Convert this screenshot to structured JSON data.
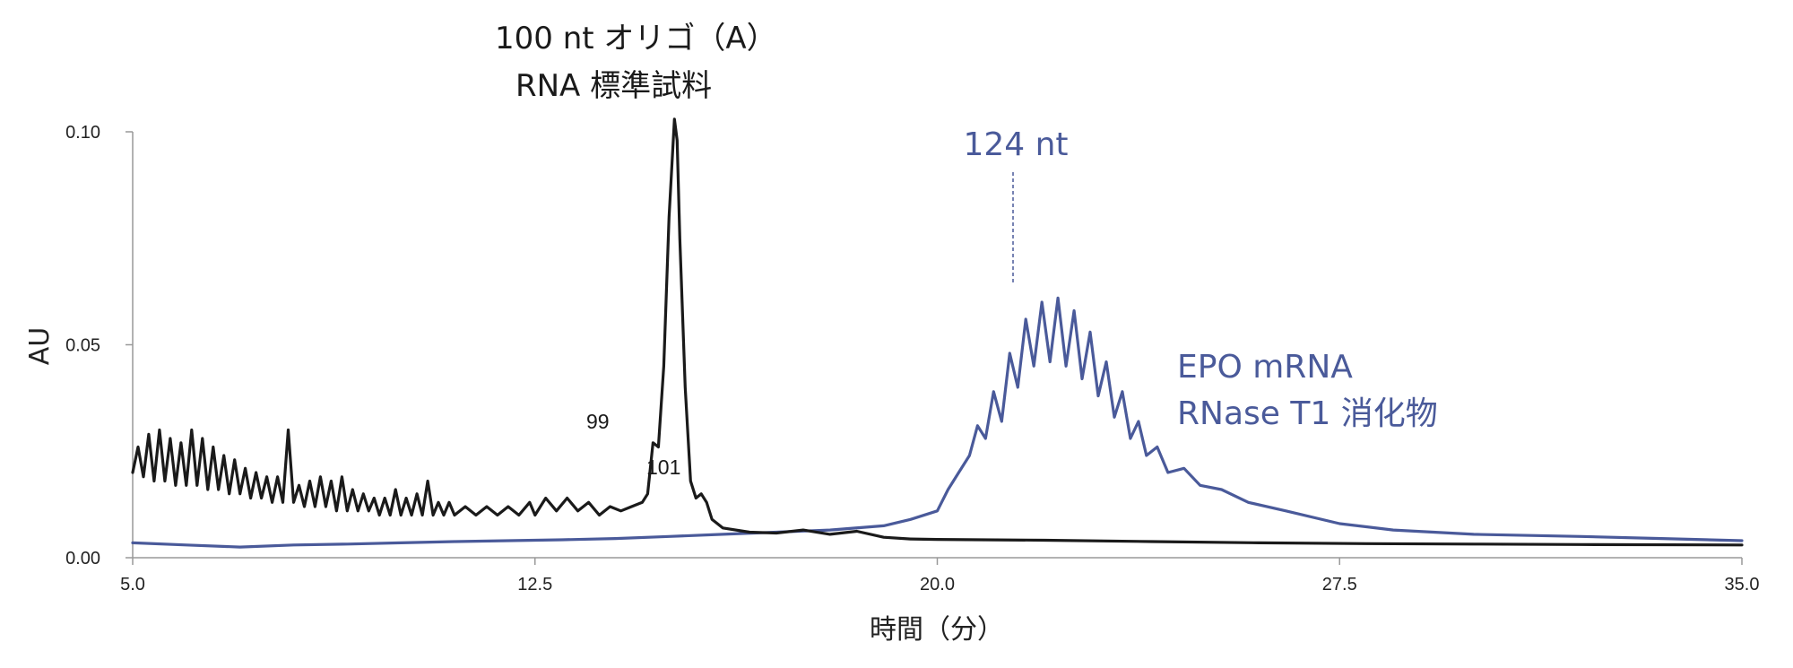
{
  "chart_data": {
    "type": "line",
    "xlabel": "時間（分）",
    "ylabel": "AU",
    "xlim": [
      5.0,
      35.0
    ],
    "ylim": [
      0.0,
      0.1
    ],
    "xticks": [
      "5.0",
      "12.5",
      "20.0",
      "27.5",
      "35.0"
    ],
    "yticks": [
      "0.00",
      "0.05",
      "0.10"
    ],
    "grid": false,
    "colors": {
      "black_trace": "#1a1a1a",
      "blue_trace": "#4a5a9a",
      "axis": "#999999"
    },
    "series": [
      {
        "name": "100 nt オリゴ（A） RNA 標準試料",
        "points": [
          [
            5.0,
            0.02
          ],
          [
            5.1,
            0.026
          ],
          [
            5.2,
            0.019
          ],
          [
            5.3,
            0.029
          ],
          [
            5.4,
            0.018
          ],
          [
            5.5,
            0.03
          ],
          [
            5.6,
            0.018
          ],
          [
            5.7,
            0.028
          ],
          [
            5.8,
            0.017
          ],
          [
            5.9,
            0.027
          ],
          [
            6.0,
            0.017
          ],
          [
            6.1,
            0.03
          ],
          [
            6.2,
            0.017
          ],
          [
            6.3,
            0.028
          ],
          [
            6.4,
            0.016
          ],
          [
            6.5,
            0.026
          ],
          [
            6.6,
            0.016
          ],
          [
            6.7,
            0.024
          ],
          [
            6.8,
            0.015
          ],
          [
            6.9,
            0.023
          ],
          [
            7.0,
            0.015
          ],
          [
            7.1,
            0.021
          ],
          [
            7.2,
            0.014
          ],
          [
            7.3,
            0.02
          ],
          [
            7.4,
            0.014
          ],
          [
            7.5,
            0.019
          ],
          [
            7.6,
            0.013
          ],
          [
            7.7,
            0.019
          ],
          [
            7.8,
            0.013
          ],
          [
            7.9,
            0.03
          ],
          [
            8.0,
            0.013
          ],
          [
            8.1,
            0.017
          ],
          [
            8.2,
            0.012
          ],
          [
            8.3,
            0.018
          ],
          [
            8.4,
            0.012
          ],
          [
            8.5,
            0.019
          ],
          [
            8.6,
            0.012
          ],
          [
            8.7,
            0.018
          ],
          [
            8.8,
            0.011
          ],
          [
            8.9,
            0.019
          ],
          [
            9.0,
            0.011
          ],
          [
            9.1,
            0.016
          ],
          [
            9.2,
            0.011
          ],
          [
            9.3,
            0.015
          ],
          [
            9.4,
            0.011
          ],
          [
            9.5,
            0.014
          ],
          [
            9.6,
            0.01
          ],
          [
            9.7,
            0.014
          ],
          [
            9.8,
            0.01
          ],
          [
            9.9,
            0.016
          ],
          [
            10.0,
            0.01
          ],
          [
            10.1,
            0.014
          ],
          [
            10.2,
            0.01
          ],
          [
            10.3,
            0.015
          ],
          [
            10.4,
            0.01
          ],
          [
            10.5,
            0.018
          ],
          [
            10.6,
            0.01
          ],
          [
            10.7,
            0.013
          ],
          [
            10.8,
            0.01
          ],
          [
            10.9,
            0.013
          ],
          [
            11.0,
            0.01
          ],
          [
            11.2,
            0.012
          ],
          [
            11.4,
            0.01
          ],
          [
            11.6,
            0.012
          ],
          [
            11.8,
            0.01
          ],
          [
            12.0,
            0.012
          ],
          [
            12.2,
            0.01
          ],
          [
            12.4,
            0.013
          ],
          [
            12.5,
            0.01
          ],
          [
            12.7,
            0.014
          ],
          [
            12.9,
            0.011
          ],
          [
            13.1,
            0.014
          ],
          [
            13.3,
            0.011
          ],
          [
            13.5,
            0.013
          ],
          [
            13.7,
            0.01
          ],
          [
            13.9,
            0.012
          ],
          [
            14.1,
            0.011
          ],
          [
            14.3,
            0.012
          ],
          [
            14.5,
            0.013
          ],
          [
            14.6,
            0.015
          ],
          [
            14.7,
            0.027
          ],
          [
            14.8,
            0.026
          ],
          [
            14.9,
            0.045
          ],
          [
            15.0,
            0.08
          ],
          [
            15.1,
            0.103
          ],
          [
            15.15,
            0.098
          ],
          [
            15.2,
            0.075
          ],
          [
            15.3,
            0.04
          ],
          [
            15.4,
            0.018
          ],
          [
            15.5,
            0.014
          ],
          [
            15.6,
            0.015
          ],
          [
            15.7,
            0.013
          ],
          [
            15.8,
            0.009
          ],
          [
            16.0,
            0.007
          ],
          [
            16.5,
            0.006
          ],
          [
            17.0,
            0.0058
          ],
          [
            17.5,
            0.0065
          ],
          [
            18.0,
            0.0055
          ],
          [
            18.5,
            0.0062
          ],
          [
            19.0,
            0.0048
          ],
          [
            19.5,
            0.0044
          ],
          [
            20.0,
            0.0043
          ],
          [
            22.0,
            0.0041
          ],
          [
            24.0,
            0.0038
          ],
          [
            26.0,
            0.0035
          ],
          [
            28.0,
            0.0033
          ],
          [
            30.0,
            0.0032
          ],
          [
            32.0,
            0.0031
          ],
          [
            35.0,
            0.003
          ]
        ]
      },
      {
        "name": "EPO mRNA RNase T1 消化物",
        "points": [
          [
            5.0,
            0.0035
          ],
          [
            6.0,
            0.003
          ],
          [
            7.0,
            0.0025
          ],
          [
            8.0,
            0.003
          ],
          [
            9.0,
            0.0032
          ],
          [
            10.0,
            0.0035
          ],
          [
            11.0,
            0.0038
          ],
          [
            12.0,
            0.004
          ],
          [
            13.0,
            0.0042
          ],
          [
            14.0,
            0.0045
          ],
          [
            15.0,
            0.005
          ],
          [
            16.0,
            0.0055
          ],
          [
            17.0,
            0.006
          ],
          [
            18.0,
            0.0065
          ],
          [
            19.0,
            0.0075
          ],
          [
            19.5,
            0.009
          ],
          [
            20.0,
            0.011
          ],
          [
            20.2,
            0.016
          ],
          [
            20.4,
            0.02
          ],
          [
            20.6,
            0.024
          ],
          [
            20.75,
            0.031
          ],
          [
            20.9,
            0.028
          ],
          [
            21.05,
            0.039
          ],
          [
            21.2,
            0.032
          ],
          [
            21.35,
            0.048
          ],
          [
            21.5,
            0.04
          ],
          [
            21.65,
            0.056
          ],
          [
            21.8,
            0.045
          ],
          [
            21.95,
            0.06
          ],
          [
            22.1,
            0.046
          ],
          [
            22.25,
            0.061
          ],
          [
            22.4,
            0.045
          ],
          [
            22.55,
            0.058
          ],
          [
            22.7,
            0.042
          ],
          [
            22.85,
            0.053
          ],
          [
            23.0,
            0.038
          ],
          [
            23.15,
            0.046
          ],
          [
            23.3,
            0.033
          ],
          [
            23.45,
            0.039
          ],
          [
            23.6,
            0.028
          ],
          [
            23.75,
            0.032
          ],
          [
            23.9,
            0.024
          ],
          [
            24.1,
            0.026
          ],
          [
            24.3,
            0.02
          ],
          [
            24.6,
            0.021
          ],
          [
            24.9,
            0.017
          ],
          [
            25.3,
            0.016
          ],
          [
            25.8,
            0.013
          ],
          [
            26.5,
            0.011
          ],
          [
            27.5,
            0.008
          ],
          [
            28.5,
            0.0065
          ],
          [
            30.0,
            0.0055
          ],
          [
            32.0,
            0.005
          ],
          [
            33.5,
            0.0045
          ],
          [
            35.0,
            0.004
          ]
        ]
      }
    ],
    "annotations": {
      "black_title_line1": "100 nt オリゴ（A）",
      "black_title_line2": "RNA 標準試料",
      "peak_99": "99",
      "peak_101": "101",
      "blue_peak_label": "124 nt",
      "blue_legend_line1": "EPO mRNA",
      "blue_legend_line2": "RNase T1 消化物"
    }
  }
}
